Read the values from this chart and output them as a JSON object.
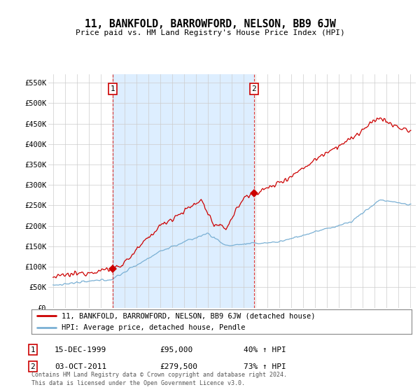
{
  "title": "11, BANKFOLD, BARROWFORD, NELSON, BB9 6JW",
  "subtitle": "Price paid vs. HM Land Registry's House Price Index (HPI)",
  "ylim": [
    0,
    570000
  ],
  "yticks": [
    0,
    50000,
    100000,
    150000,
    200000,
    250000,
    300000,
    350000,
    400000,
    450000,
    500000,
    550000
  ],
  "ytick_labels": [
    "£0",
    "£50K",
    "£100K",
    "£150K",
    "£200K",
    "£250K",
    "£300K",
    "£350K",
    "£400K",
    "£450K",
    "£500K",
    "£550K"
  ],
  "line1_color": "#cc0000",
  "line2_color": "#7ab0d4",
  "shade_color": "#ddeeff",
  "marker1_x": 2000.0,
  "marker1_y": 95000,
  "marker2_x": 2011.9,
  "marker2_y": 279500,
  "legend_line1": "11, BANKFOLD, BARROWFORD, NELSON, BB9 6JW (detached house)",
  "legend_line2": "HPI: Average price, detached house, Pendle",
  "annotation1_date": "15-DEC-1999",
  "annotation1_price": "£95,000",
  "annotation1_hpi": "40% ↑ HPI",
  "annotation2_date": "03-OCT-2011",
  "annotation2_price": "£279,500",
  "annotation2_hpi": "73% ↑ HPI",
  "footer": "Contains HM Land Registry data © Crown copyright and database right 2024.\nThis data is licensed under the Open Government Licence v3.0.",
  "background_color": "#ffffff",
  "grid_color": "#cccccc",
  "xlim_left": 1994.6,
  "xlim_right": 2025.5
}
